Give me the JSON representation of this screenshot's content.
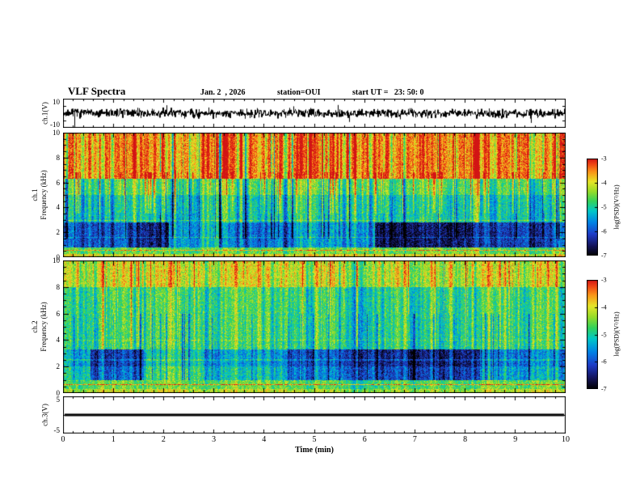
{
  "header": {
    "title": "VLF Spectra",
    "date": "Jan. 2  , 2026",
    "station": "station=OUI",
    "start_ut": "start UT =   23: 50: 0"
  },
  "axes": {
    "x": {
      "label": "Time (min)",
      "min": 0,
      "max": 10,
      "ticks": [
        "0",
        "1",
        "2",
        "3",
        "4",
        "5",
        "6",
        "7",
        "8",
        "9",
        "10"
      ],
      "minor_step": 0.2
    }
  },
  "colorbar": {
    "label": "log(PSD)(V²/Hz)",
    "ticks": [
      "-3",
      "-4",
      "-5",
      "-6",
      "-7"
    ],
    "min": -7,
    "max": -3
  },
  "colormap": [
    [
      0.0,
      "#000000"
    ],
    [
      0.1,
      "#14145a"
    ],
    [
      0.22,
      "#1e3cc8"
    ],
    [
      0.34,
      "#0082e6"
    ],
    [
      0.46,
      "#00c8c8"
    ],
    [
      0.56,
      "#32d25a"
    ],
    [
      0.66,
      "#96dc28"
    ],
    [
      0.76,
      "#e6e628"
    ],
    [
      0.86,
      "#fa9619"
    ],
    [
      0.94,
      "#f04614"
    ],
    [
      1.0,
      "#d21414"
    ]
  ],
  "chart_data": [
    {
      "type": "line",
      "name": "ch1-voltage-trace",
      "ylabel": "ch.1(V)",
      "ylim": [
        -10,
        10
      ],
      "xlim": [
        0,
        10
      ],
      "ytick_labels": [
        {
          "v": 10,
          "t": "10"
        },
        {
          "v": -10,
          "t": "-10"
        }
      ],
      "inner_ticks": [
        -5,
        0,
        5
      ],
      "description": "Broadband noise waveform centred on 0 V, typical excursions about ±3 V with intermittent spikes toward ±8 V across the full 10 min record.",
      "noise_sigma_V": 1.6,
      "spike_prob": 0.02,
      "spike_gain": 2.5,
      "seed": 7
    },
    {
      "type": "heatmap",
      "name": "ch1-spectrogram",
      "ylabel": "ch.1 Frequency (kHz)",
      "ylabel_lines": [
        "ch.1",
        "Frequency (kHz)"
      ],
      "xlim": [
        0,
        10
      ],
      "ylim": [
        0,
        10
      ],
      "zlabel": "log(PSD)(V²/Hz)",
      "zlim": [
        -7,
        -3
      ],
      "ytick_labels": [
        {
          "v": 10,
          "t": "10"
        },
        {
          "v": 8,
          "t": "8"
        },
        {
          "v": 6,
          "t": "6"
        },
        {
          "v": 4,
          "t": "4"
        },
        {
          "v": 2,
          "t": "2"
        },
        {
          "v": 0,
          "t": "0"
        }
      ],
      "description": "VLF spectrogram: intense red band (~ -3.5) above ~6.3 kHz with dense vertical streaking, green/cyan mid band 3-6 kHz, patchy blue/dark-blue blocks 1-3 kHz (darkest ~ -6.6 between 6.2-8.3 min), and a bright yellow-orange band below ~0.3 kHz with a red-orange line near 0.55 kHz.",
      "seed": 42,
      "pixel_noise": 0.48,
      "bands": [
        {
          "f0": 6.3,
          "f1": 10.0,
          "base": -3.5,
          "streak": 1.3
        },
        {
          "f0": 5.0,
          "f1": 6.3,
          "base": -4.7,
          "streak": 1.0
        },
        {
          "f0": 2.8,
          "f1": 5.0,
          "base": -5.1,
          "streak": 1.0
        },
        {
          "f0": 0.8,
          "f1": 2.8,
          "base": -5.6,
          "streak": 0.8
        },
        {
          "f0": 0.25,
          "f1": 0.8,
          "base": -4.6,
          "streak": 0.5
        },
        {
          "f0": 0.0,
          "f1": 0.25,
          "base": -4.0,
          "streak": 0.3
        }
      ],
      "segment_band": [
        0.8,
        2.8
      ],
      "segments": [
        {
          "x0": 0.0,
          "x1": 1.3,
          "d": -0.3
        },
        {
          "x0": 1.3,
          "x1": 2.1,
          "d": -0.9
        },
        {
          "x0": 2.1,
          "x1": 3.1,
          "d": 0.3
        },
        {
          "x0": 3.1,
          "x1": 4.6,
          "d": -0.2
        },
        {
          "x0": 4.6,
          "x1": 6.2,
          "d": 0.0
        },
        {
          "x0": 6.2,
          "x1": 8.3,
          "d": -1.1
        },
        {
          "x0": 8.3,
          "x1": 10.0,
          "d": -0.5
        }
      ],
      "hlines": [
        {
          "f": 0.55,
          "d": 1.0
        },
        {
          "f": 1.6,
          "d": 0.5
        },
        {
          "f": 2.95,
          "d": 0.5
        }
      ],
      "bright_spikes": {
        "prob": 0.1,
        "f0": 3.5,
        "f1": 6.8,
        "gain": 1.3
      },
      "dark_spikes": {
        "prob": 0.06,
        "f0": 1.5,
        "f1": 10.0,
        "gain": -1.0
      }
    },
    {
      "type": "heatmap",
      "name": "ch2-spectrogram",
      "ylabel": "ch.2 Frequency (kHz)",
      "ylabel_lines": [
        "ch.2",
        "Frequency (kHz)"
      ],
      "xlim": [
        0,
        10
      ],
      "ylim": [
        0,
        10
      ],
      "zlabel": "log(PSD)(V²/Hz)",
      "zlim": [
        -7,
        -3
      ],
      "ytick_labels": [
        {
          "v": 10,
          "t": "10"
        },
        {
          "v": 8,
          "t": "8"
        },
        {
          "v": 6,
          "t": "6"
        },
        {
          "v": 4,
          "t": "4"
        },
        {
          "v": 2,
          "t": "2"
        },
        {
          "v": 0,
          "t": "0"
        }
      ],
      "description": "VLF spectrogram: yellow-green field with vertical streaks, red streaks above ~8 kHz, blue patches 1-3.3 kHz (darkest between 6.2-8.3 min and 0.55-1.6 min), and an orange-red horizontal line near 0.65 kHz.",
      "seed": 1337,
      "pixel_noise": 0.48,
      "bands": [
        {
          "f0": 8.0,
          "f1": 10.0,
          "base": -4.1,
          "streak": 1.1
        },
        {
          "f0": 3.3,
          "f1": 8.0,
          "base": -4.8,
          "streak": 0.9
        },
        {
          "f0": 2.0,
          "f1": 3.3,
          "base": -5.3,
          "streak": 0.7
        },
        {
          "f0": 1.0,
          "f1": 2.0,
          "base": -5.0,
          "streak": 0.7
        },
        {
          "f0": 0.3,
          "f1": 1.0,
          "base": -4.6,
          "streak": 0.5
        },
        {
          "f0": 0.0,
          "f1": 0.3,
          "base": -4.2,
          "streak": 0.3
        }
      ],
      "segment_band": [
        1.0,
        3.3
      ],
      "segments": [
        {
          "x0": 0.0,
          "x1": 0.55,
          "d": 0.1
        },
        {
          "x0": 0.55,
          "x1": 1.6,
          "d": -0.9
        },
        {
          "x0": 1.6,
          "x1": 2.8,
          "d": 0.2
        },
        {
          "x0": 2.8,
          "x1": 4.4,
          "d": -0.2
        },
        {
          "x0": 4.4,
          "x1": 6.2,
          "d": -0.6
        },
        {
          "x0": 6.2,
          "x1": 8.3,
          "d": -1.0
        },
        {
          "x0": 8.3,
          "x1": 10.0,
          "d": -0.4
        }
      ],
      "hlines": [
        {
          "f": 0.65,
          "d": 1.2
        },
        {
          "f": 2.5,
          "d": 0.4
        },
        {
          "f": 4.0,
          "d": 0.3
        }
      ],
      "bright_spikes": {
        "prob": 0.08,
        "f0": 3.5,
        "f1": 10.0,
        "gain": 1.1
      },
      "dark_spikes": {
        "prob": 0.05,
        "f0": 1.0,
        "f1": 6.0,
        "gain": -0.8
      }
    },
    {
      "type": "line",
      "name": "ch3-voltage-trace",
      "ylabel": "ch.3(V)",
      "ylim": [
        -5,
        5
      ],
      "xlim": [
        0,
        10
      ],
      "ytick_labels": [
        {
          "v": 5,
          "t": "5"
        },
        {
          "v": -5,
          "t": "-5"
        }
      ],
      "inner_ticks": [
        0
      ],
      "value_V": 0,
      "description": "Flat constant trace at 0 V for the full record."
    }
  ]
}
